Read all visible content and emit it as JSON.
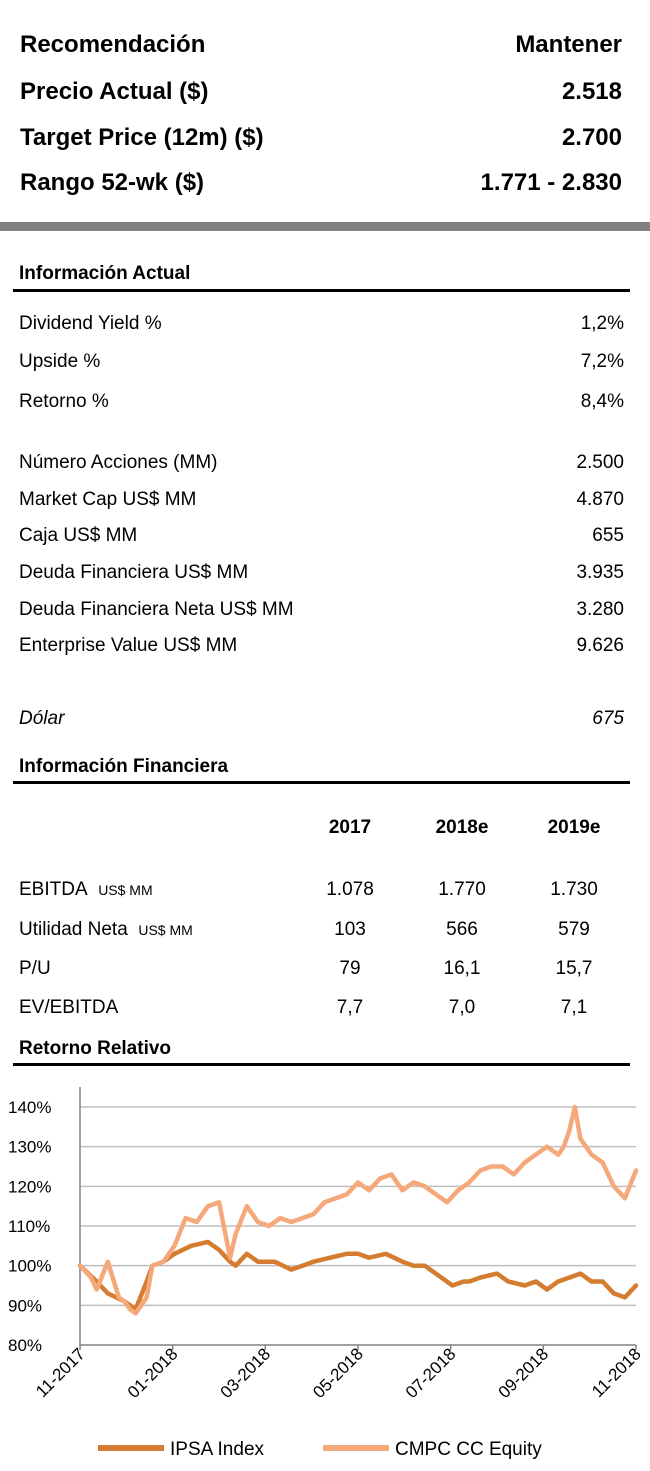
{
  "summary": {
    "recommendation_label": "Recomendación",
    "recommendation_value": "Mantener",
    "price_label": "Precio Actual  ($)",
    "price_value": "2.518",
    "target_label": "Target Price (12m)  ($)",
    "target_value": "2.700",
    "range_label": "Rango 52-wk ($)",
    "range_value": "1.771 - 2.830"
  },
  "info_actual": {
    "title": "Información Actual",
    "rows": [
      {
        "label": "Dividend Yield %",
        "value": "1,2%"
      },
      {
        "label": "Upside %",
        "value": "7,2%"
      },
      {
        "label": "Retorno %",
        "value": "8,4%"
      },
      {
        "label": "Número Acciones (MM)",
        "value": "2.500"
      },
      {
        "label": "Market Cap US$ MM",
        "value": "4.870"
      },
      {
        "label": "Caja  US$ MM",
        "value": "655"
      },
      {
        "label": "Deuda Financiera  US$ MM",
        "value": "3.935"
      },
      {
        "label": "Deuda Financiera Neta  US$ MM",
        "value": "3.280"
      },
      {
        "label": "Enterprise Value US$ MM",
        "value": "9.626"
      }
    ],
    "dolar_label": "Dólar",
    "dolar_value": "675"
  },
  "info_financiera": {
    "title": "Información Financiera",
    "years": [
      "2017",
      "2018e",
      "2019e"
    ],
    "rows": [
      {
        "label": "EBITDA",
        "unit": "US$ MM",
        "values": [
          "1.078",
          "1.770",
          "1.730"
        ]
      },
      {
        "label": "Utilidad Neta",
        "unit": "US$ MM",
        "values": [
          "103",
          "566",
          "579"
        ]
      },
      {
        "label": "P/U",
        "unit": "",
        "values": [
          "79",
          "16,1",
          "15,7"
        ]
      },
      {
        "label": "EV/EBITDA",
        "unit": "",
        "values": [
          "7,7",
          "7,0",
          "7,1"
        ]
      }
    ]
  },
  "chart_title": "Retorno Relativo",
  "chart_data": {
    "type": "line",
    "x_tick_labels": [
      "11-2017",
      "01-2018",
      "03-2018",
      "05-2018",
      "07-2018",
      "09-2018",
      "11-2018"
    ],
    "y_tick_labels": [
      "80%",
      "90%",
      "100%",
      "110%",
      "120%",
      "130%",
      "140%"
    ],
    "ylim": [
      80,
      140
    ],
    "grid": true,
    "legend_position": "bottom",
    "series": [
      {
        "name": "IPSA Index",
        "color": "#D47C2F",
        "x": [
          0,
          0.03,
          0.05,
          0.08,
          0.1,
          0.12,
          0.13,
          0.15,
          0.17,
          0.2,
          0.23,
          0.25,
          0.27,
          0.28,
          0.3,
          0.32,
          0.35,
          0.38,
          0.4,
          0.42,
          0.45,
          0.48,
          0.5,
          0.52,
          0.55,
          0.58,
          0.6,
          0.62,
          0.65,
          0.67,
          0.69,
          0.7,
          0.72,
          0.75,
          0.77,
          0.8,
          0.82,
          0.84,
          0.86,
          0.88,
          0.9,
          0.92,
          0.94,
          0.96,
          0.98,
          1.0
        ],
        "y": [
          100,
          96,
          93,
          91,
          89,
          96,
          100,
          101,
          103,
          105,
          106,
          104,
          101,
          100,
          103,
          101,
          101,
          99,
          100,
          101,
          102,
          103,
          103,
          102,
          103,
          101,
          100,
          100,
          97,
          95,
          96,
          96,
          97,
          98,
          96,
          95,
          96,
          94,
          96,
          97,
          98,
          96,
          96,
          93,
          92,
          95
        ]
      },
      {
        "name": "CMPC CC Equity",
        "color": "#F5A97A",
        "x": [
          0,
          0.02,
          0.03,
          0.05,
          0.07,
          0.08,
          0.09,
          0.1,
          0.12,
          0.13,
          0.15,
          0.17,
          0.19,
          0.21,
          0.23,
          0.25,
          0.27,
          0.28,
          0.3,
          0.32,
          0.34,
          0.36,
          0.38,
          0.4,
          0.42,
          0.44,
          0.46,
          0.48,
          0.5,
          0.52,
          0.54,
          0.56,
          0.58,
          0.6,
          0.62,
          0.64,
          0.66,
          0.68,
          0.7,
          0.72,
          0.74,
          0.76,
          0.78,
          0.8,
          0.82,
          0.84,
          0.86,
          0.87,
          0.88,
          0.89,
          0.9,
          0.92,
          0.94,
          0.96,
          0.98,
          1.0
        ],
        "y": [
          100,
          97,
          94,
          101,
          92,
          91,
          89,
          88,
          92,
          100,
          101,
          105,
          112,
          111,
          115,
          116,
          102,
          108,
          115,
          111,
          110,
          112,
          111,
          112,
          113,
          116,
          117,
          118,
          121,
          119,
          122,
          123,
          119,
          121,
          120,
          118,
          116,
          119,
          121,
          124,
          125,
          125,
          123,
          126,
          128,
          130,
          128,
          130,
          134,
          140,
          132,
          128,
          126,
          120,
          117,
          124
        ]
      }
    ]
  }
}
